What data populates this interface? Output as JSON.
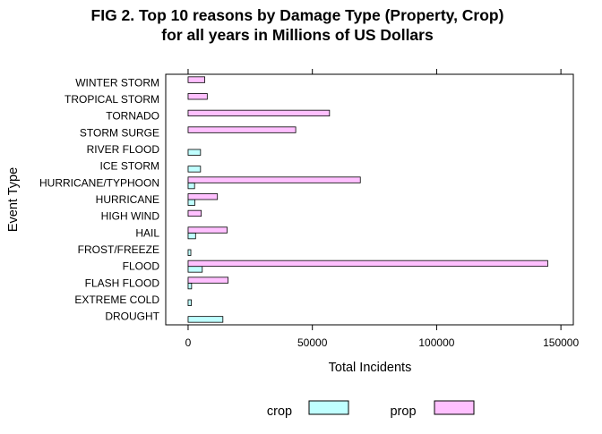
{
  "chart_data": {
    "type": "bar",
    "orientation": "horizontal",
    "title": "FIG 2. Top 10 reasons by Damage Type (Property, Crop)",
    "subtitle": "for all years in Millions of US Dollars",
    "xlabel": "Total Incidents",
    "ylabel": "Event Type",
    "xlim": [
      -9000,
      155000
    ],
    "xticks": [
      0,
      50000,
      100000,
      150000
    ],
    "xtick_labels": [
      "0",
      "50000",
      "100000",
      "150000"
    ],
    "grid": false,
    "legend_position": "bottom",
    "categories": [
      "DROUGHT",
      "EXTREME COLD",
      "FLASH FLOOD",
      "FLOOD",
      "FROST/FREEZE",
      "HAIL",
      "HIGH WIND",
      "HURRICANE",
      "HURRICANE/TYPHOON",
      "ICE STORM",
      "RIVER FLOOD",
      "STORM SURGE",
      "TORNADO",
      "TROPICAL STORM",
      "WINTER STORM"
    ],
    "series": [
      {
        "name": "crop",
        "color": "#c0ffff",
        "values": [
          14000,
          1300,
          1400,
          5700,
          1100,
          3000,
          0,
          2700,
          2600,
          5000,
          5000,
          0,
          0,
          0,
          0
        ]
      },
      {
        "name": "prop",
        "color": "#ffc0ff",
        "values": [
          0,
          0,
          16100,
          144700,
          0,
          15700,
          5300,
          11800,
          69300,
          0,
          0,
          43300,
          56900,
          7700,
          6700
        ]
      }
    ]
  }
}
